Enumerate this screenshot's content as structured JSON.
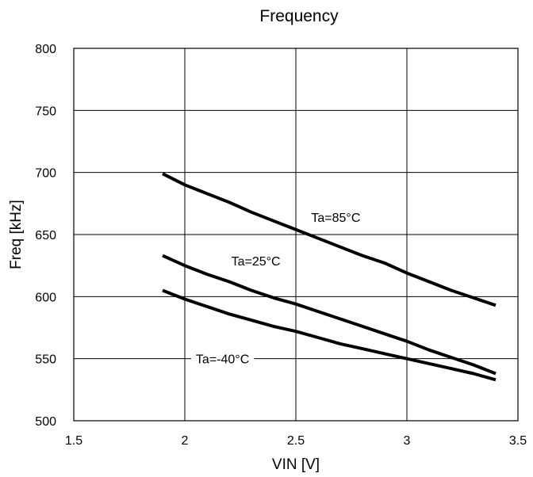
{
  "chart_data": {
    "type": "line",
    "title": "Frequency",
    "xlabel": "VIN [V]",
    "ylabel": "Freq [kHz]",
    "xlim": [
      1.5,
      3.5
    ],
    "ylim": [
      500,
      800
    ],
    "xticks": [
      "1.5",
      "2",
      "2.5",
      "3",
      "3.5"
    ],
    "yticks": [
      "500",
      "550",
      "600",
      "650",
      "700",
      "750",
      "800"
    ],
    "grid": true,
    "series": [
      {
        "name": "Ta=85°C",
        "x": [
          1.9,
          2.0,
          2.1,
          2.2,
          2.3,
          2.4,
          2.5,
          2.6,
          2.7,
          2.8,
          2.9,
          3.0,
          3.1,
          3.2,
          3.3,
          3.4
        ],
        "y": [
          699,
          690,
          683,
          676,
          668,
          661,
          654,
          647,
          640,
          633,
          627,
          619,
          612,
          605,
          599,
          593
        ]
      },
      {
        "name": "Ta=25°C",
        "x": [
          1.9,
          2.0,
          2.1,
          2.2,
          2.3,
          2.4,
          2.5,
          2.6,
          2.7,
          2.8,
          2.9,
          3.0,
          3.1,
          3.2,
          3.3,
          3.4
        ],
        "y": [
          633,
          625,
          618,
          612,
          605,
          599,
          594,
          588,
          582,
          576,
          570,
          564,
          557,
          551,
          545,
          538
        ]
      },
      {
        "name": "Ta=-40°C",
        "x": [
          1.9,
          2.0,
          2.1,
          2.2,
          2.3,
          2.4,
          2.5,
          2.6,
          2.7,
          2.8,
          2.9,
          3.0,
          3.1,
          3.2,
          3.3,
          3.4
        ],
        "y": [
          605,
          598,
          592,
          586,
          581,
          576,
          572,
          567,
          562,
          558,
          554,
          550,
          546,
          542,
          538,
          533
        ]
      }
    ],
    "annotations": [
      {
        "text": "Ta=85°C",
        "x": 2.68,
        "y": 664
      },
      {
        "text": "Ta=25°C",
        "x": 2.32,
        "y": 629
      },
      {
        "text": "Ta=-40°C",
        "x": 2.17,
        "y": 550
      }
    ],
    "line_color": "#000000",
    "grid_color": "#000000",
    "background": "#ffffff"
  }
}
